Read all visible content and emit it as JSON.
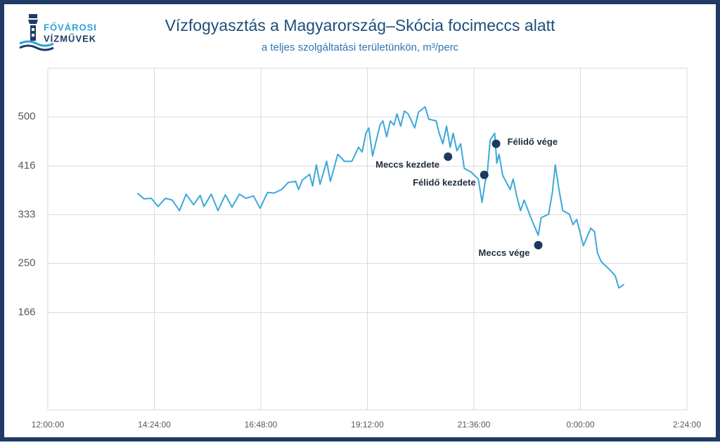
{
  "logo": {
    "line1": "FŐVÁROSI",
    "line2": "VÍZMŰVEK"
  },
  "chart_data": {
    "type": "line",
    "title": "Vízfogyasztás a Magyarország–Skócia focimeccs alatt",
    "subtitle": "a teljes szolgáltatási területünkön, m³/perc",
    "color": "#3da8d8",
    "xlim": [
      720,
      1584
    ],
    "xticks": [
      {
        "value": 720,
        "label": "12:00:00"
      },
      {
        "value": 864,
        "label": "14:24:00"
      },
      {
        "value": 1008,
        "label": "16:48:00"
      },
      {
        "value": 1152,
        "label": "19:12:00"
      },
      {
        "value": 1296,
        "label": "21:36:00"
      },
      {
        "value": 1440,
        "label": "0:00:00"
      },
      {
        "value": 1584,
        "label": "2:24:00"
      }
    ],
    "ylim": [
      0,
      583
    ],
    "yticks": [
      166,
      250,
      333,
      416,
      500
    ],
    "grid": true,
    "x": [
      841,
      850,
      860,
      869,
      879,
      888,
      898,
      907,
      917,
      926,
      931,
      941,
      950,
      960,
      969,
      979,
      988,
      998,
      1007,
      1017,
      1026,
      1036,
      1045,
      1055,
      1059,
      1064,
      1074,
      1078,
      1083,
      1088,
      1097,
      1102,
      1112,
      1121,
      1131,
      1140,
      1145,
      1150,
      1154,
      1159,
      1169,
      1173,
      1178,
      1183,
      1188,
      1192,
      1197,
      1202,
      1207,
      1216,
      1221,
      1230,
      1235,
      1245,
      1249,
      1254,
      1259,
      1264,
      1268,
      1273,
      1278,
      1283,
      1292,
      1302,
      1307,
      1311,
      1314,
      1318,
      1324,
      1327,
      1330,
      1335,
      1345,
      1349,
      1354,
      1359,
      1364,
      1373,
      1383,
      1387,
      1397,
      1402,
      1406,
      1411,
      1416,
      1425,
      1430,
      1435,
      1444,
      1454,
      1459,
      1463,
      1468,
      1478,
      1487,
      1492,
      1499
    ],
    "values": [
      370,
      360,
      361,
      347,
      361,
      358,
      340,
      368,
      350,
      366,
      347,
      368,
      340,
      367,
      346,
      368,
      361,
      365,
      344,
      371,
      370,
      376,
      388,
      390,
      376,
      392,
      402,
      382,
      418,
      385,
      424,
      390,
      436,
      424,
      424,
      448,
      440,
      472,
      481,
      433,
      486,
      493,
      466,
      493,
      486,
      505,
      484,
      510,
      505,
      481,
      508,
      517,
      496,
      493,
      472,
      454,
      484,
      448,
      472,
      442,
      454,
      412,
      406,
      394,
      354,
      388,
      402,
      460,
      472,
      421,
      436,
      400,
      376,
      394,
      364,
      340,
      358,
      328,
      298,
      328,
      334,
      370,
      418,
      376,
      340,
      334,
      316,
      325,
      280,
      310,
      304,
      268,
      253,
      241,
      229,
      208,
      214
    ],
    "annotations": [
      {
        "label": "Meccs kezdete",
        "x": 1261,
        "y": 432,
        "position": "left"
      },
      {
        "label": "Félidő kezdete",
        "x": 1310,
        "y": 401,
        "position": "left"
      },
      {
        "label": "Félidő vége",
        "x": 1326,
        "y": 454,
        "position": "right"
      },
      {
        "label": "Meccs vége",
        "x": 1383,
        "y": 281,
        "position": "left"
      }
    ]
  }
}
